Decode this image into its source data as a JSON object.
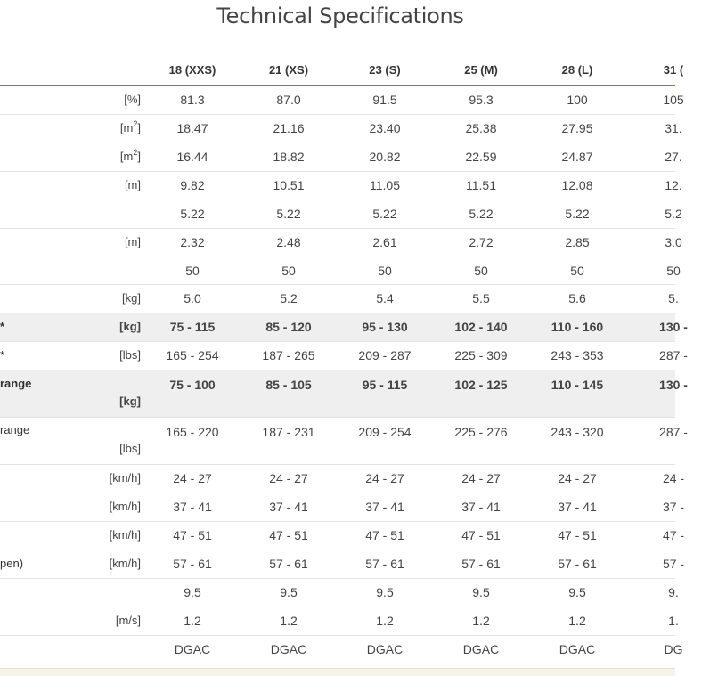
{
  "title": "Technical Specifications",
  "columns": [
    "18 (XXS)",
    "21 (XS)",
    "23 (S)",
    "25 (M)",
    "28 (L)",
    "31 ("
  ],
  "rows": [
    {
      "label": "",
      "unit": "[%]",
      "values": [
        "81.3",
        "87.0",
        "91.5",
        "95.3",
        "100",
        "105"
      ]
    },
    {
      "label": "",
      "unit": "[m",
      "unit_sup": "2",
      "unit_end": "]",
      "values": [
        "18.47",
        "21.16",
        "23.40",
        "25.38",
        "27.95",
        "31."
      ]
    },
    {
      "label": "",
      "unit": "[m",
      "unit_sup": "2",
      "unit_end": "]",
      "values": [
        "16.44",
        "18.82",
        "20.82",
        "22.59",
        "24.87",
        "27."
      ]
    },
    {
      "label": "",
      "unit": "[m]",
      "values": [
        "9.82",
        "10.51",
        "11.05",
        "11.51",
        "12.08",
        "12."
      ]
    },
    {
      "label": "",
      "unit": "",
      "values": [
        "5.22",
        "5.22",
        "5.22",
        "5.22",
        "5.22",
        "5.2"
      ]
    },
    {
      "label": "",
      "unit": "[m]",
      "values": [
        "2.32",
        "2.48",
        "2.61",
        "2.72",
        "2.85",
        "3.0"
      ]
    },
    {
      "label": "",
      "unit": "",
      "values": [
        "50",
        "50",
        "50",
        "50",
        "50",
        "50"
      ]
    },
    {
      "label": "",
      "unit": "[kg]",
      "values": [
        "5.0",
        "5.2",
        "5.4",
        "5.5",
        "5.6",
        "5."
      ]
    },
    {
      "label": "*",
      "unit": "[kg]",
      "values": [
        "75 - 115",
        "85 - 120",
        "95 - 130",
        "102 - 140",
        "110 - 160",
        "130 -"
      ]
    },
    {
      "label": "*",
      "unit": "[lbs]",
      "values": [
        "165 - 254",
        "187 - 265",
        "209 - 287",
        "225 - 309",
        "243 - 353",
        "287 -"
      ]
    },
    {
      "label": "range",
      "unit": "[kg]",
      "values": [
        "75 - 100",
        "85 - 105",
        "95 - 115",
        "102 - 125",
        "110 - 145",
        "130 -"
      ]
    },
    {
      "label": "range",
      "unit": "[lbs]",
      "values": [
        "165 - 220",
        "187 - 231",
        "209 - 254",
        "225 - 276",
        "243 - 320",
        "287 -"
      ]
    },
    {
      "label": "",
      "unit": "[km/h]",
      "values": [
        "24 - 27",
        "24 - 27",
        "24 - 27",
        "24 - 27",
        "24 - 27",
        "24 -"
      ]
    },
    {
      "label": "",
      "unit": "[km/h]",
      "values": [
        "37 - 41",
        "37 - 41",
        "37 - 41",
        "37 - 41",
        "37 - 41",
        "37 -"
      ]
    },
    {
      "label": "",
      "unit": "[km/h]",
      "values": [
        "47 - 51",
        "47 - 51",
        "47 - 51",
        "47 - 51",
        "47 - 51",
        "47 -"
      ]
    },
    {
      "label": "pen)",
      "unit": "[km/h]",
      "values": [
        "57 - 61",
        "57 - 61",
        "57 - 61",
        "57 - 61",
        "57 - 61",
        "57 -"
      ]
    },
    {
      "label": "",
      "unit": "",
      "values": [
        "9.5",
        "9.5",
        "9.5",
        "9.5",
        "9.5",
        "9."
      ]
    },
    {
      "label": "",
      "unit": "[m/s]",
      "values": [
        "1.2",
        "1.2",
        "1.2",
        "1.2",
        "1.2",
        "1."
      ]
    },
    {
      "label": "",
      "unit": "",
      "values": [
        "DGAC",
        "DGAC",
        "DGAC",
        "DGAC",
        "DGAC",
        "DG"
      ]
    }
  ]
}
